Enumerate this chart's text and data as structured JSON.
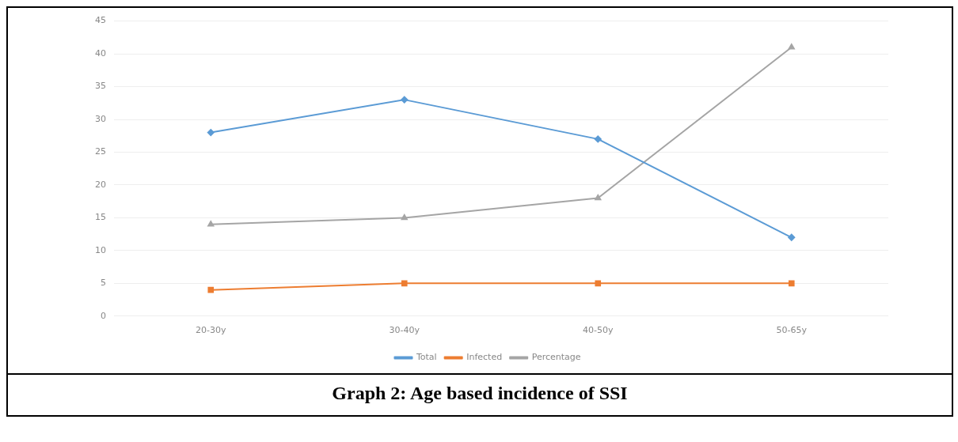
{
  "chart_data": {
    "type": "line",
    "annotations": [
      "Graph 2: Age based incidence of SSI"
    ],
    "categories": [
      "20-30y",
      "30-40y",
      "40-50y",
      "50-65y"
    ],
    "series": [
      {
        "name": "Total",
        "color": "#5b9bd5",
        "values": [
          28,
          33,
          27,
          12
        ],
        "marker": "diamond"
      },
      {
        "name": "Infected",
        "color": "#ed7d31",
        "values": [
          4,
          5,
          5,
          5
        ],
        "marker": "square"
      },
      {
        "name": "Percentage",
        "color": "#a5a5a5",
        "values": [
          14,
          15,
          18,
          41
        ],
        "marker": "triangle"
      }
    ],
    "ylim": [
      0,
      45
    ],
    "yticks": [
      0,
      5,
      10,
      15,
      20,
      25,
      30,
      35,
      40,
      45
    ],
    "grid": "y",
    "legend": "bottom"
  }
}
